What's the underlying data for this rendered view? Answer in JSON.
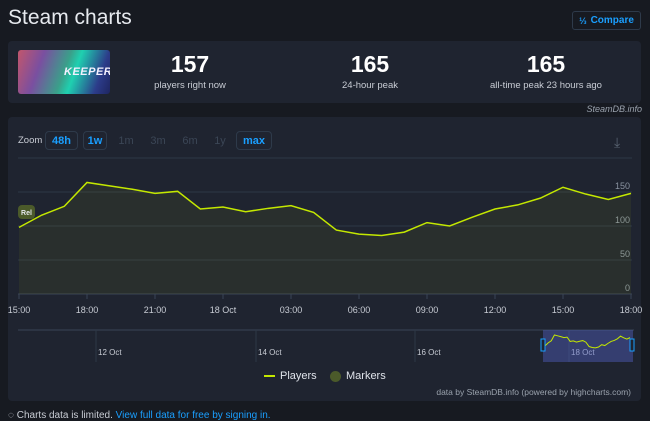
{
  "header": {
    "title": "Steam charts",
    "compare_label": "Compare",
    "compare_icon": "fraction-icon"
  },
  "stats": {
    "game_logo_text": "KEEPER",
    "items": [
      {
        "value": "157",
        "label": "players right now"
      },
      {
        "value": "165",
        "label": "24-hour peak"
      },
      {
        "value": "165",
        "label": "all-time peak 23 hours ago"
      }
    ]
  },
  "credit": "SteamDB.info",
  "zoom": {
    "label": "Zoom",
    "buttons": [
      {
        "label": "48h",
        "state": "enabled"
      },
      {
        "label": "1w",
        "state": "enabled"
      },
      {
        "label": "1m",
        "state": "disabled"
      },
      {
        "label": "3m",
        "state": "disabled"
      },
      {
        "label": "6m",
        "state": "disabled"
      },
      {
        "label": "1y",
        "state": "disabled"
      },
      {
        "label": "max",
        "state": "selected"
      }
    ]
  },
  "chart_data": {
    "type": "area",
    "x": [
      "15:00",
      "16:00",
      "17:00",
      "18:00",
      "19:00",
      "20:00",
      "21:00",
      "22:00",
      "23:00",
      "00:00",
      "01:00",
      "02:00",
      "03:00",
      "04:00",
      "05:00",
      "06:00",
      "07:00",
      "08:00",
      "09:00",
      "10:00",
      "11:00",
      "12:00",
      "13:00",
      "14:00",
      "15:00",
      "16:00",
      "17:00",
      "18:00"
    ],
    "x_tick_labels": [
      "15:00",
      "18:00",
      "21:00",
      "18 Oct",
      "03:00",
      "06:00",
      "09:00",
      "12:00",
      "15:00",
      "18:00"
    ],
    "y_tick_labels": [
      "0",
      "50",
      "100",
      "150"
    ],
    "ylim": [
      0,
      200
    ],
    "grid": true,
    "series": [
      {
        "name": "Players",
        "color": "#c4e800",
        "values": [
          98,
          116,
          129,
          164,
          159,
          154,
          148,
          151,
          125,
          128,
          121,
          126,
          130,
          120,
          94,
          88,
          86,
          91,
          105,
          100,
          113,
          125,
          131,
          141,
          157,
          147,
          139,
          148
        ]
      }
    ],
    "marker_flag": "Rel",
    "navigator_labels": [
      "12 Oct",
      "14 Oct",
      "16 Oct",
      "18 Oct"
    ],
    "legend": [
      {
        "name": "Players",
        "color": "#c4e800"
      },
      {
        "name": "Markers",
        "color": "#4b5a2a"
      }
    ],
    "legend_position": "bottom",
    "credits": "data by SteamDB.info (powered by highcharts.com)"
  },
  "notice": {
    "text": "Charts data is limited.",
    "link": "View full data for free by signing in."
  }
}
